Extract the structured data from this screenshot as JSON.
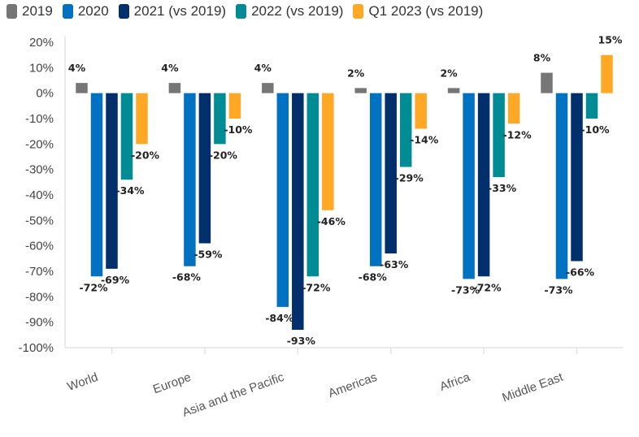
{
  "chart_data": {
    "type": "bar",
    "categories": [
      "World",
      "Europe",
      "Asia and the Pacific",
      "Americas",
      "Africa",
      "Middle East"
    ],
    "series": [
      {
        "name": "2019",
        "color": "#767676",
        "values": [
          4,
          4,
          4,
          2,
          2,
          8
        ]
      },
      {
        "name": "2020",
        "color": "#0072C1",
        "values": [
          -72,
          -68,
          -84,
          -68,
          -73,
          -73
        ]
      },
      {
        "name": "2021 (vs 2019)",
        "color": "#002F6C",
        "values": [
          -69,
          -59,
          -93,
          -63,
          -72,
          -66
        ]
      },
      {
        "name": "2022 (vs 2019)",
        "color": "#008C95",
        "values": [
          -34,
          -20,
          -72,
          -29,
          -33,
          -10
        ]
      },
      {
        "name": "Q1 2023 (vs 2019)",
        "color": "#FFA826",
        "values": [
          -20,
          -10,
          -46,
          -14,
          -12,
          15
        ]
      }
    ],
    "yticks": [
      "20%",
      "10%",
      "0%",
      "-10%",
      "-20%",
      "-30%",
      "-40%",
      "-50%",
      "-60%",
      "-70%",
      "-80%",
      "-90%",
      "-100%"
    ],
    "ylim": [
      -100,
      20
    ],
    "value_suffix": "%",
    "legend": "top",
    "grid": false
  }
}
